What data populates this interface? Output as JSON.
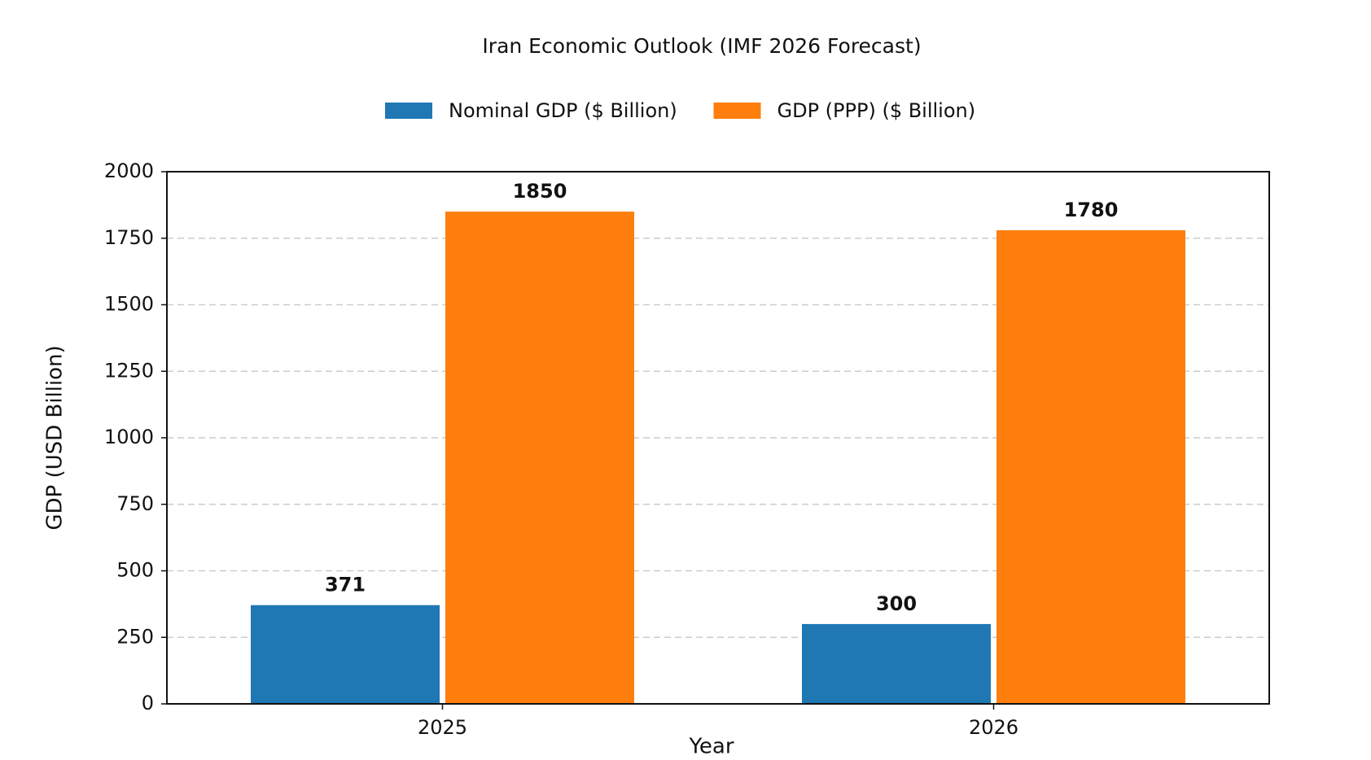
{
  "chart_data": {
    "type": "bar",
    "title": "Iran Economic Outlook (IMF 2026 Forecast)",
    "x_label": "Year",
    "y_label": "GDP (USD Billion)",
    "categories": [
      "2025",
      "2026"
    ],
    "series": [
      {
        "name": "Nominal GDP ($ Billion)",
        "color": "#1f77b4",
        "values": [
          371,
          300
        ]
      },
      {
        "name": "GDP (PPP) ($ Billion)",
        "color": "#ff7f0e",
        "values": [
          1850,
          1780
        ]
      }
    ],
    "ylim": [
      0,
      2000
    ],
    "yticks": [
      0,
      250,
      500,
      750,
      1000,
      1250,
      1500,
      1750,
      2000
    ],
    "grid": true,
    "legend": "top"
  }
}
